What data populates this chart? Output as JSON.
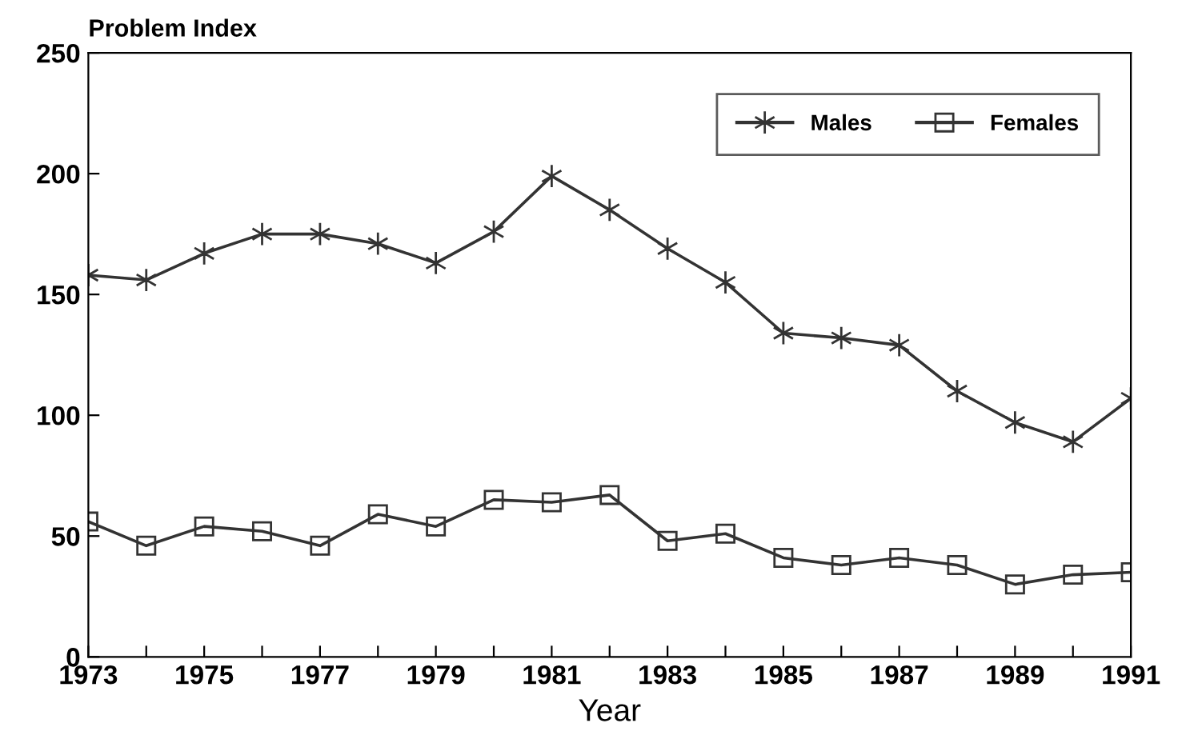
{
  "chart_data": {
    "type": "line",
    "ylabel": "Problem Index",
    "xlabel": "Year",
    "x": [
      1973,
      1974,
      1975,
      1976,
      1977,
      1978,
      1979,
      1980,
      1981,
      1982,
      1983,
      1984,
      1985,
      1986,
      1987,
      1988,
      1989,
      1990,
      1991
    ],
    "series": [
      {
        "name": "Males",
        "color": "#333333",
        "marker": "cross",
        "values": [
          158,
          156,
          167,
          175,
          175,
          171,
          163,
          176,
          199,
          185,
          169,
          155,
          134,
          132,
          129,
          110,
          97,
          89,
          107
        ]
      },
      {
        "name": "Females",
        "color": "#333333",
        "marker": "square",
        "values": [
          56,
          46,
          54,
          52,
          46,
          59,
          54,
          65,
          64,
          67,
          48,
          51,
          41,
          38,
          41,
          38,
          30,
          34,
          35
        ]
      }
    ],
    "xlim": [
      1973,
      1991
    ],
    "xticks": [
      1973,
      {
        "value": 1974,
        "label": null
      },
      1975,
      {
        "value": 1976,
        "label": null
      },
      1977,
      {
        "value": 1978,
        "label": null
      },
      1979,
      {
        "value": 1980,
        "label": null
      },
      1981,
      {
        "value": 1982,
        "label": null
      },
      1983,
      {
        "value": 1984,
        "label": null
      },
      1985,
      {
        "value": 1986,
        "label": null
      },
      1987,
      {
        "value": 1988,
        "label": null
      },
      1989,
      {
        "value": 1990,
        "label": null
      },
      1991
    ],
    "ylim": [
      0,
      250
    ],
    "yticks": [
      0,
      50,
      100,
      150,
      200,
      250
    ],
    "grid": false,
    "legend": "top right",
    "line_style": "solid"
  }
}
